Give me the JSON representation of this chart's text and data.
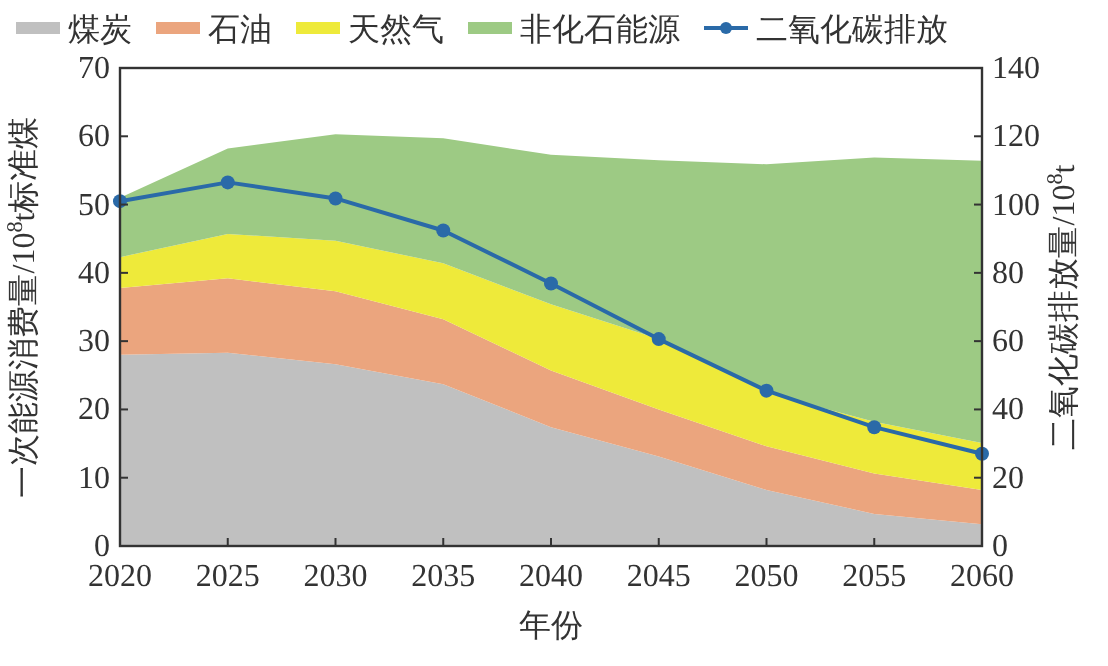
{
  "chart_data": {
    "type": "area",
    "stacked": true,
    "xlabel": "年份",
    "ylabel": "一次能源消费量/10$^{8}$t标准煤",
    "y2label": "二氧化碳排放量/10$^{8}$t",
    "x": [
      2020,
      2025,
      2030,
      2035,
      2040,
      2045,
      2050,
      2055,
      2060
    ],
    "xlim": [
      2020,
      2060
    ],
    "xticks": [
      2020,
      2025,
      2030,
      2035,
      2040,
      2045,
      2050,
      2055,
      2060
    ],
    "ylim": [
      0,
      70
    ],
    "yticks": [
      0,
      10,
      20,
      30,
      40,
      50,
      60,
      70
    ],
    "y2lim": [
      0,
      140
    ],
    "y2ticks": [
      0,
      20,
      40,
      60,
      80,
      100,
      120,
      140
    ],
    "legend": "top",
    "grid": false,
    "series": [
      {
        "name": "煤炭",
        "color": "#c0c0c0",
        "values": [
          28,
          28.3,
          26.6,
          23.7,
          17.4,
          13.1,
          8.2,
          4.7,
          3.2
        ]
      },
      {
        "name": "石油",
        "color": "#eba57e",
        "values": [
          9.8,
          10.9,
          10.7,
          9.5,
          8.3,
          6.9,
          6.4,
          5.9,
          5.0
        ]
      },
      {
        "name": "天然气",
        "color": "#eeea3a",
        "values": [
          4.5,
          6.5,
          7.4,
          8.2,
          9.7,
          10.3,
          7.8,
          7.6,
          6.9
        ]
      },
      {
        "name": "非化石能源",
        "color": "#9dca84",
        "values": [
          8.7,
          12.5,
          15.6,
          18.3,
          21.9,
          26.2,
          33.5,
          38.7,
          41.3
        ]
      },
      {
        "name": "二氧化碳排放",
        "type": "line",
        "axis": "y2",
        "marker": "circle",
        "line_style": "solid",
        "color": "#2a6aa8",
        "values": [
          101,
          106.5,
          101.8,
          92.4,
          76.9,
          60.6,
          45.5,
          34.8,
          27
        ]
      }
    ]
  }
}
